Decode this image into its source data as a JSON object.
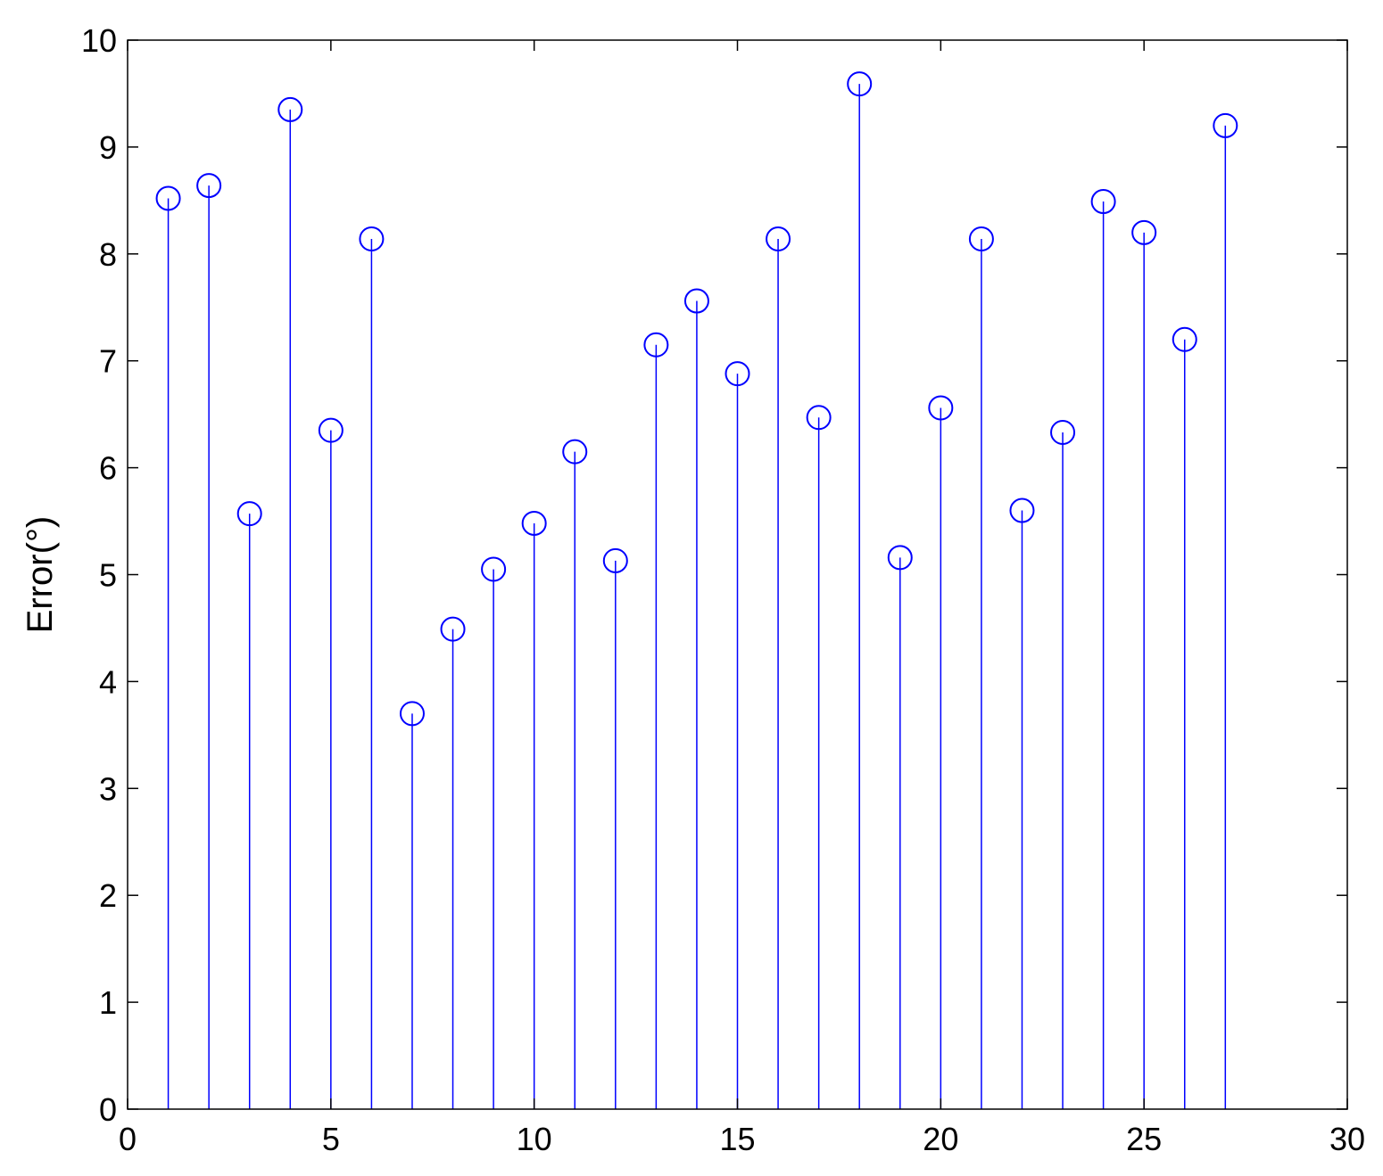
{
  "chart_data": {
    "type": "stem",
    "title": "",
    "xlabel": "",
    "ylabel": "Error(°)",
    "xlim": [
      0,
      30
    ],
    "ylim": [
      0,
      10
    ],
    "xticks": [
      0,
      5,
      10,
      15,
      20,
      25,
      30
    ],
    "yticks": [
      0,
      1,
      2,
      3,
      4,
      5,
      6,
      7,
      8,
      9,
      10
    ],
    "grid": false,
    "marker": "circle",
    "color": "#0000ff",
    "x": [
      1,
      2,
      3,
      4,
      5,
      6,
      7,
      8,
      9,
      10,
      11,
      12,
      13,
      14,
      15,
      16,
      17,
      18,
      19,
      20,
      21,
      22,
      23,
      24,
      25,
      26,
      27
    ],
    "values": [
      8.52,
      8.64,
      5.57,
      9.35,
      6.35,
      8.14,
      3.7,
      4.49,
      5.05,
      5.48,
      6.15,
      5.13,
      7.15,
      7.56,
      6.88,
      8.14,
      6.47,
      9.59,
      5.16,
      6.56,
      8.14,
      5.6,
      6.33,
      8.49,
      8.2,
      7.2,
      9.2
    ]
  }
}
